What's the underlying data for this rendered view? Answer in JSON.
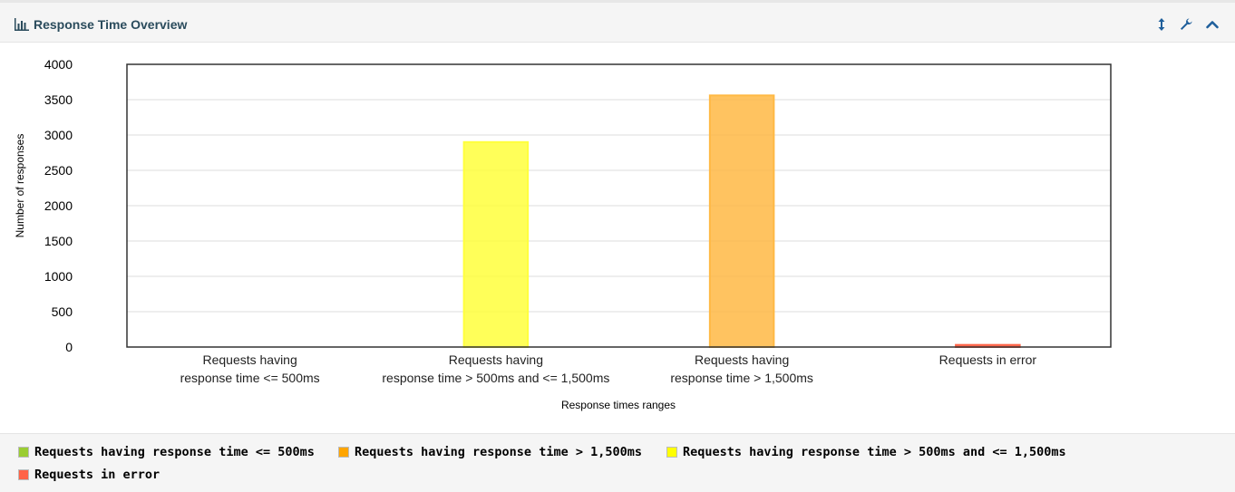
{
  "panel": {
    "title": "Response Time Overview"
  },
  "toolbar": {
    "expand_icon": "vertical-arrows-icon",
    "settings_icon": "wrench-icon",
    "collapse_icon": "chevron-up-icon"
  },
  "chart_data": {
    "type": "bar",
    "categories": [
      [
        "Requests having",
        "response time <= 500ms"
      ],
      [
        "Requests having",
        "response time > 500ms and <= 1,500ms"
      ],
      [
        "Requests having",
        "response time > 1,500ms"
      ],
      [
        "Requests in error"
      ]
    ],
    "values": [
      0,
      2900,
      3560,
      30
    ],
    "colors": [
      "#9ACD32",
      "#FFFF3C",
      "#FFB944",
      "#FF6347"
    ],
    "ylabel": "Number of responses",
    "xlabel": "Response times ranges",
    "ylim": [
      0,
      4000
    ],
    "yticks": [
      0,
      500,
      1000,
      1500,
      2000,
      2500,
      3000,
      3500,
      4000
    ],
    "grid": true,
    "legend_position": "bottom"
  },
  "legend": {
    "items": [
      {
        "label": "Requests having response time <= 500ms",
        "color": "#9ACD32"
      },
      {
        "label": "Requests having response time > 1,500ms",
        "color": "#FFA500"
      },
      {
        "label": "Requests having response time > 500ms and <= 1,500ms",
        "color": "#FFFF00"
      },
      {
        "label": "Requests in error",
        "color": "#FF6347"
      }
    ]
  }
}
